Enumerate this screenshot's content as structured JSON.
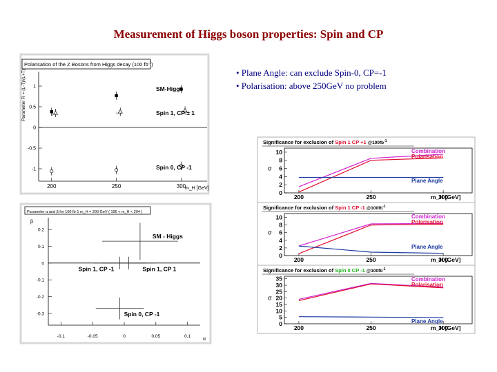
{
  "slide": {
    "title": "Measurement of  Higgs boson properties: Spin and CP",
    "bullets": [
      "• Plane Angle: can exclude Spin-0, CP=-1",
      "• Polarisation: above 250GeV no problem"
    ]
  },
  "chart_data": [
    {
      "type": "scatter",
      "title": "Polarisation of the Z Bosons from Higgs decay (100 fb",
      "ylabel": "Parameter R = (L-T)/(L+T)",
      "xlabel": "m_H [GeV]",
      "x_ticks": [
        "200",
        "250",
        "300"
      ],
      "y_ticks": [
        "1",
        "0.5",
        "0",
        "-0.5",
        "-1"
      ],
      "xlim": [
        190,
        320
      ],
      "ylim": [
        -1.3,
        1.35
      ],
      "series": [
        {
          "name": "SM-Higgs",
          "marker": "filled-square",
          "points": [
            {
              "x": 200,
              "y": 0.38
            },
            {
              "x": 250,
              "y": 0.77
            },
            {
              "x": 300,
              "y": 0.93
            }
          ]
        },
        {
          "name": "Spin 1, CP ± 1",
          "marker": "open-triangle",
          "points": [
            {
              "x": 203,
              "y": 0.35
            },
            {
              "x": 253,
              "y": 0.38
            },
            {
              "x": 303,
              "y": 0.41
            }
          ]
        },
        {
          "name": "Spin 0, CP -1",
          "marker": "open-circle",
          "points": [
            {
              "x": 200,
              "y": -1.06
            },
            {
              "x": 250,
              "y": -1.03
            },
            {
              "x": 300,
              "y": -0.93
            }
          ]
        }
      ]
    },
    {
      "type": "scatter",
      "title": "Parameter α and β for 100 fb-1 m_H = 200 GeV ( 196 < m_H < 204 )",
      "xlabel": "α",
      "ylabel": "β",
      "x_ticks": [
        "-0.1",
        "-0.05",
        "0",
        "0.05",
        "0.1"
      ],
      "y_ticks": [
        "0.2",
        "0.1",
        "0",
        "-0.1",
        "-0.2",
        "-0.3"
      ],
      "xlim": [
        -0.12,
        0.12
      ],
      "ylim": [
        -0.37,
        0.27
      ],
      "series": [
        {
          "name": "SM - Higgs",
          "x": 0.025,
          "y": 0.13,
          "xerr": 0.06,
          "yerr": 0.11
        },
        {
          "name": "Spin 1, CP -1",
          "x": -0.007,
          "y": 0.0,
          "xerr": 0.041,
          "yerr": 0.037
        },
        {
          "name": "Spin 1, CP 1",
          "x": 0.007,
          "y": 0.0,
          "xerr": 0.041,
          "yerr": 0.037
        },
        {
          "name": "Spin 0, CP -1",
          "x": -0.007,
          "y": -0.27,
          "xerr": 0.038,
          "yerr": 0.065
        }
      ]
    },
    {
      "type": "line",
      "title": "Significance for exclusion of",
      "title_highlight": "Spin 1 CP +1",
      "title_suffix": "@100fb",
      "highlight_color": "#e01030",
      "ylabel": "σ",
      "xlabel": "m_H [GeV]",
      "x_ticks": [
        "200",
        "250",
        "300"
      ],
      "y_ticks": [
        "10",
        "8",
        "6",
        "4",
        "2",
        "0"
      ],
      "xlim": [
        190,
        320
      ],
      "ylim": [
        0,
        11
      ],
      "series": [
        {
          "name": "Combination",
          "color": "#d020d0",
          "x": [
            200,
            250,
            300
          ],
          "y": [
            1.5,
            8.5,
            9.5
          ]
        },
        {
          "name": "Polarisation",
          "color": "#e01030",
          "x": [
            200,
            250,
            300
          ],
          "y": [
            0.2,
            8.0,
            8.6
          ]
        },
        {
          "name": "Plane Angle",
          "color": "#1a3aa0",
          "x": [
            200,
            250,
            300
          ],
          "y": [
            3.8,
            3.8,
            3.8
          ]
        }
      ]
    },
    {
      "type": "line",
      "title": "Significance for exclusion of",
      "title_highlight": "Spin 1 CP -1",
      "title_suffix": "@100fb",
      "highlight_color": "#e01030",
      "ylabel": "σ",
      "xlabel": "m_H [GeV]",
      "x_ticks": [
        "200",
        "250",
        "300"
      ],
      "y_ticks": [
        "10",
        "8",
        "6",
        "4",
        "2",
        "0"
      ],
      "xlim": [
        190,
        320
      ],
      "ylim": [
        0,
        11
      ],
      "series": [
        {
          "name": "Combination",
          "color": "#d020d0",
          "x": [
            200,
            250,
            300
          ],
          "y": [
            2.5,
            8.3,
            8.4
          ]
        },
        {
          "name": "Polarisation",
          "color": "#e01030",
          "x": [
            200,
            250,
            300
          ],
          "y": [
            0.5,
            8.0,
            8.2
          ]
        },
        {
          "name": "Plane Angle",
          "color": "#1a3aa0",
          "x": [
            200,
            250,
            300
          ],
          "y": [
            2.5,
            0.9,
            0.6
          ]
        }
      ]
    },
    {
      "type": "line",
      "title": "Significance for exclusion of",
      "title_highlight": "Spin 0 CP -1",
      "title_suffix": "@100fb",
      "highlight_color": "#20b020",
      "ylabel": "σ",
      "xlabel": "m_H [GeV]",
      "x_ticks": [
        "200",
        "250",
        "300"
      ],
      "y_ticks": [
        "35",
        "30",
        "25",
        "20",
        "15",
        "10",
        "5",
        "0"
      ],
      "xlim": [
        190,
        320
      ],
      "ylim": [
        0,
        37
      ],
      "series": [
        {
          "name": "Combination",
          "color": "#d020d0",
          "x": [
            200,
            250,
            300
          ],
          "y": [
            19,
            31.5,
            28.5
          ]
        },
        {
          "name": "Polarisation",
          "color": "#e01030",
          "x": [
            200,
            250,
            300
          ],
          "y": [
            18,
            31,
            28
          ]
        },
        {
          "name": "Plane Angle",
          "color": "#1a3aa0",
          "x": [
            200,
            250,
            300
          ],
          "y": [
            5.5,
            5.2,
            4.8
          ]
        }
      ]
    }
  ]
}
